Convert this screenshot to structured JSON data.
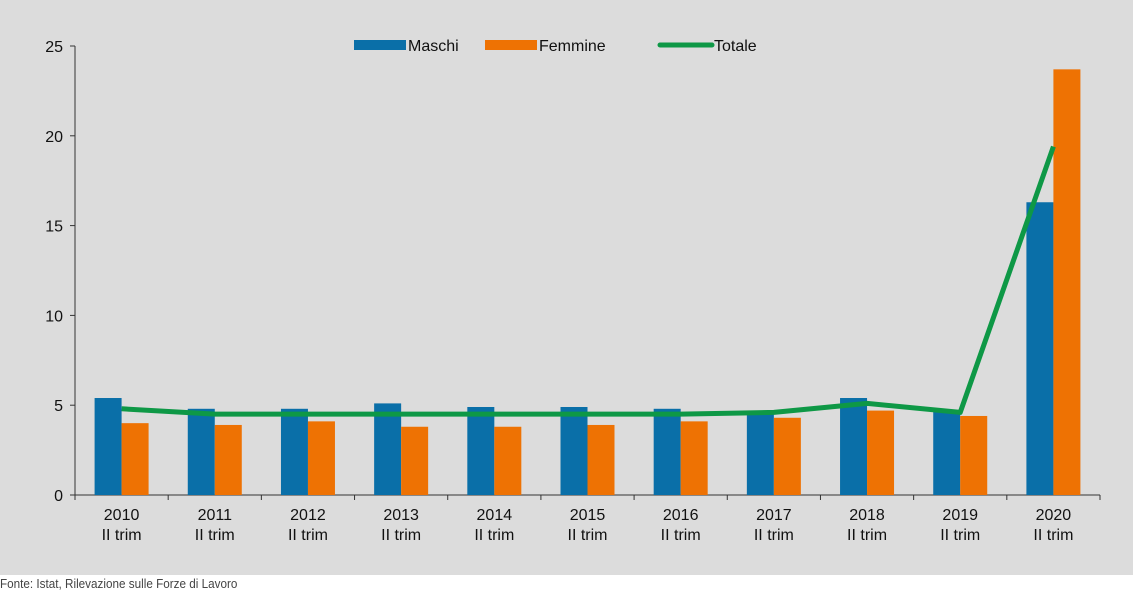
{
  "source": "Fonte: Istat, Rilevazione sulle Forze di Lavoro",
  "chart_data": {
    "type": "bar",
    "categories": [
      [
        "2010",
        "II trim"
      ],
      [
        "2011",
        "II trim"
      ],
      [
        "2012",
        "II trim"
      ],
      [
        "2013",
        "II trim"
      ],
      [
        "2014",
        "II trim"
      ],
      [
        "2015",
        "II trim"
      ],
      [
        "2016",
        "II trim"
      ],
      [
        "2017",
        "II trim"
      ],
      [
        "2018",
        "II trim"
      ],
      [
        "2019",
        "II trim"
      ],
      [
        "2020",
        "II trim"
      ]
    ],
    "series": [
      {
        "name": "Maschi",
        "kind": "bar",
        "color": "#0a6fa8",
        "values": [
          5.4,
          4.8,
          4.8,
          5.1,
          4.9,
          4.9,
          4.8,
          4.7,
          5.4,
          4.7,
          16.3
        ]
      },
      {
        "name": "Femmine",
        "kind": "bar",
        "color": "#ee7203",
        "values": [
          4.0,
          3.9,
          4.1,
          3.8,
          3.8,
          3.9,
          4.1,
          4.3,
          4.7,
          4.4,
          23.7
        ]
      },
      {
        "name": "Totale",
        "kind": "line",
        "color": "#0e9846",
        "values": [
          4.8,
          4.5,
          4.5,
          4.5,
          4.5,
          4.5,
          4.5,
          4.6,
          5.1,
          4.6,
          19.4
        ]
      }
    ],
    "yticks": [
      0,
      5,
      10,
      15,
      20,
      25
    ],
    "ylim": [
      0,
      25
    ],
    "legend_position": "top-center",
    "grid": false
  }
}
